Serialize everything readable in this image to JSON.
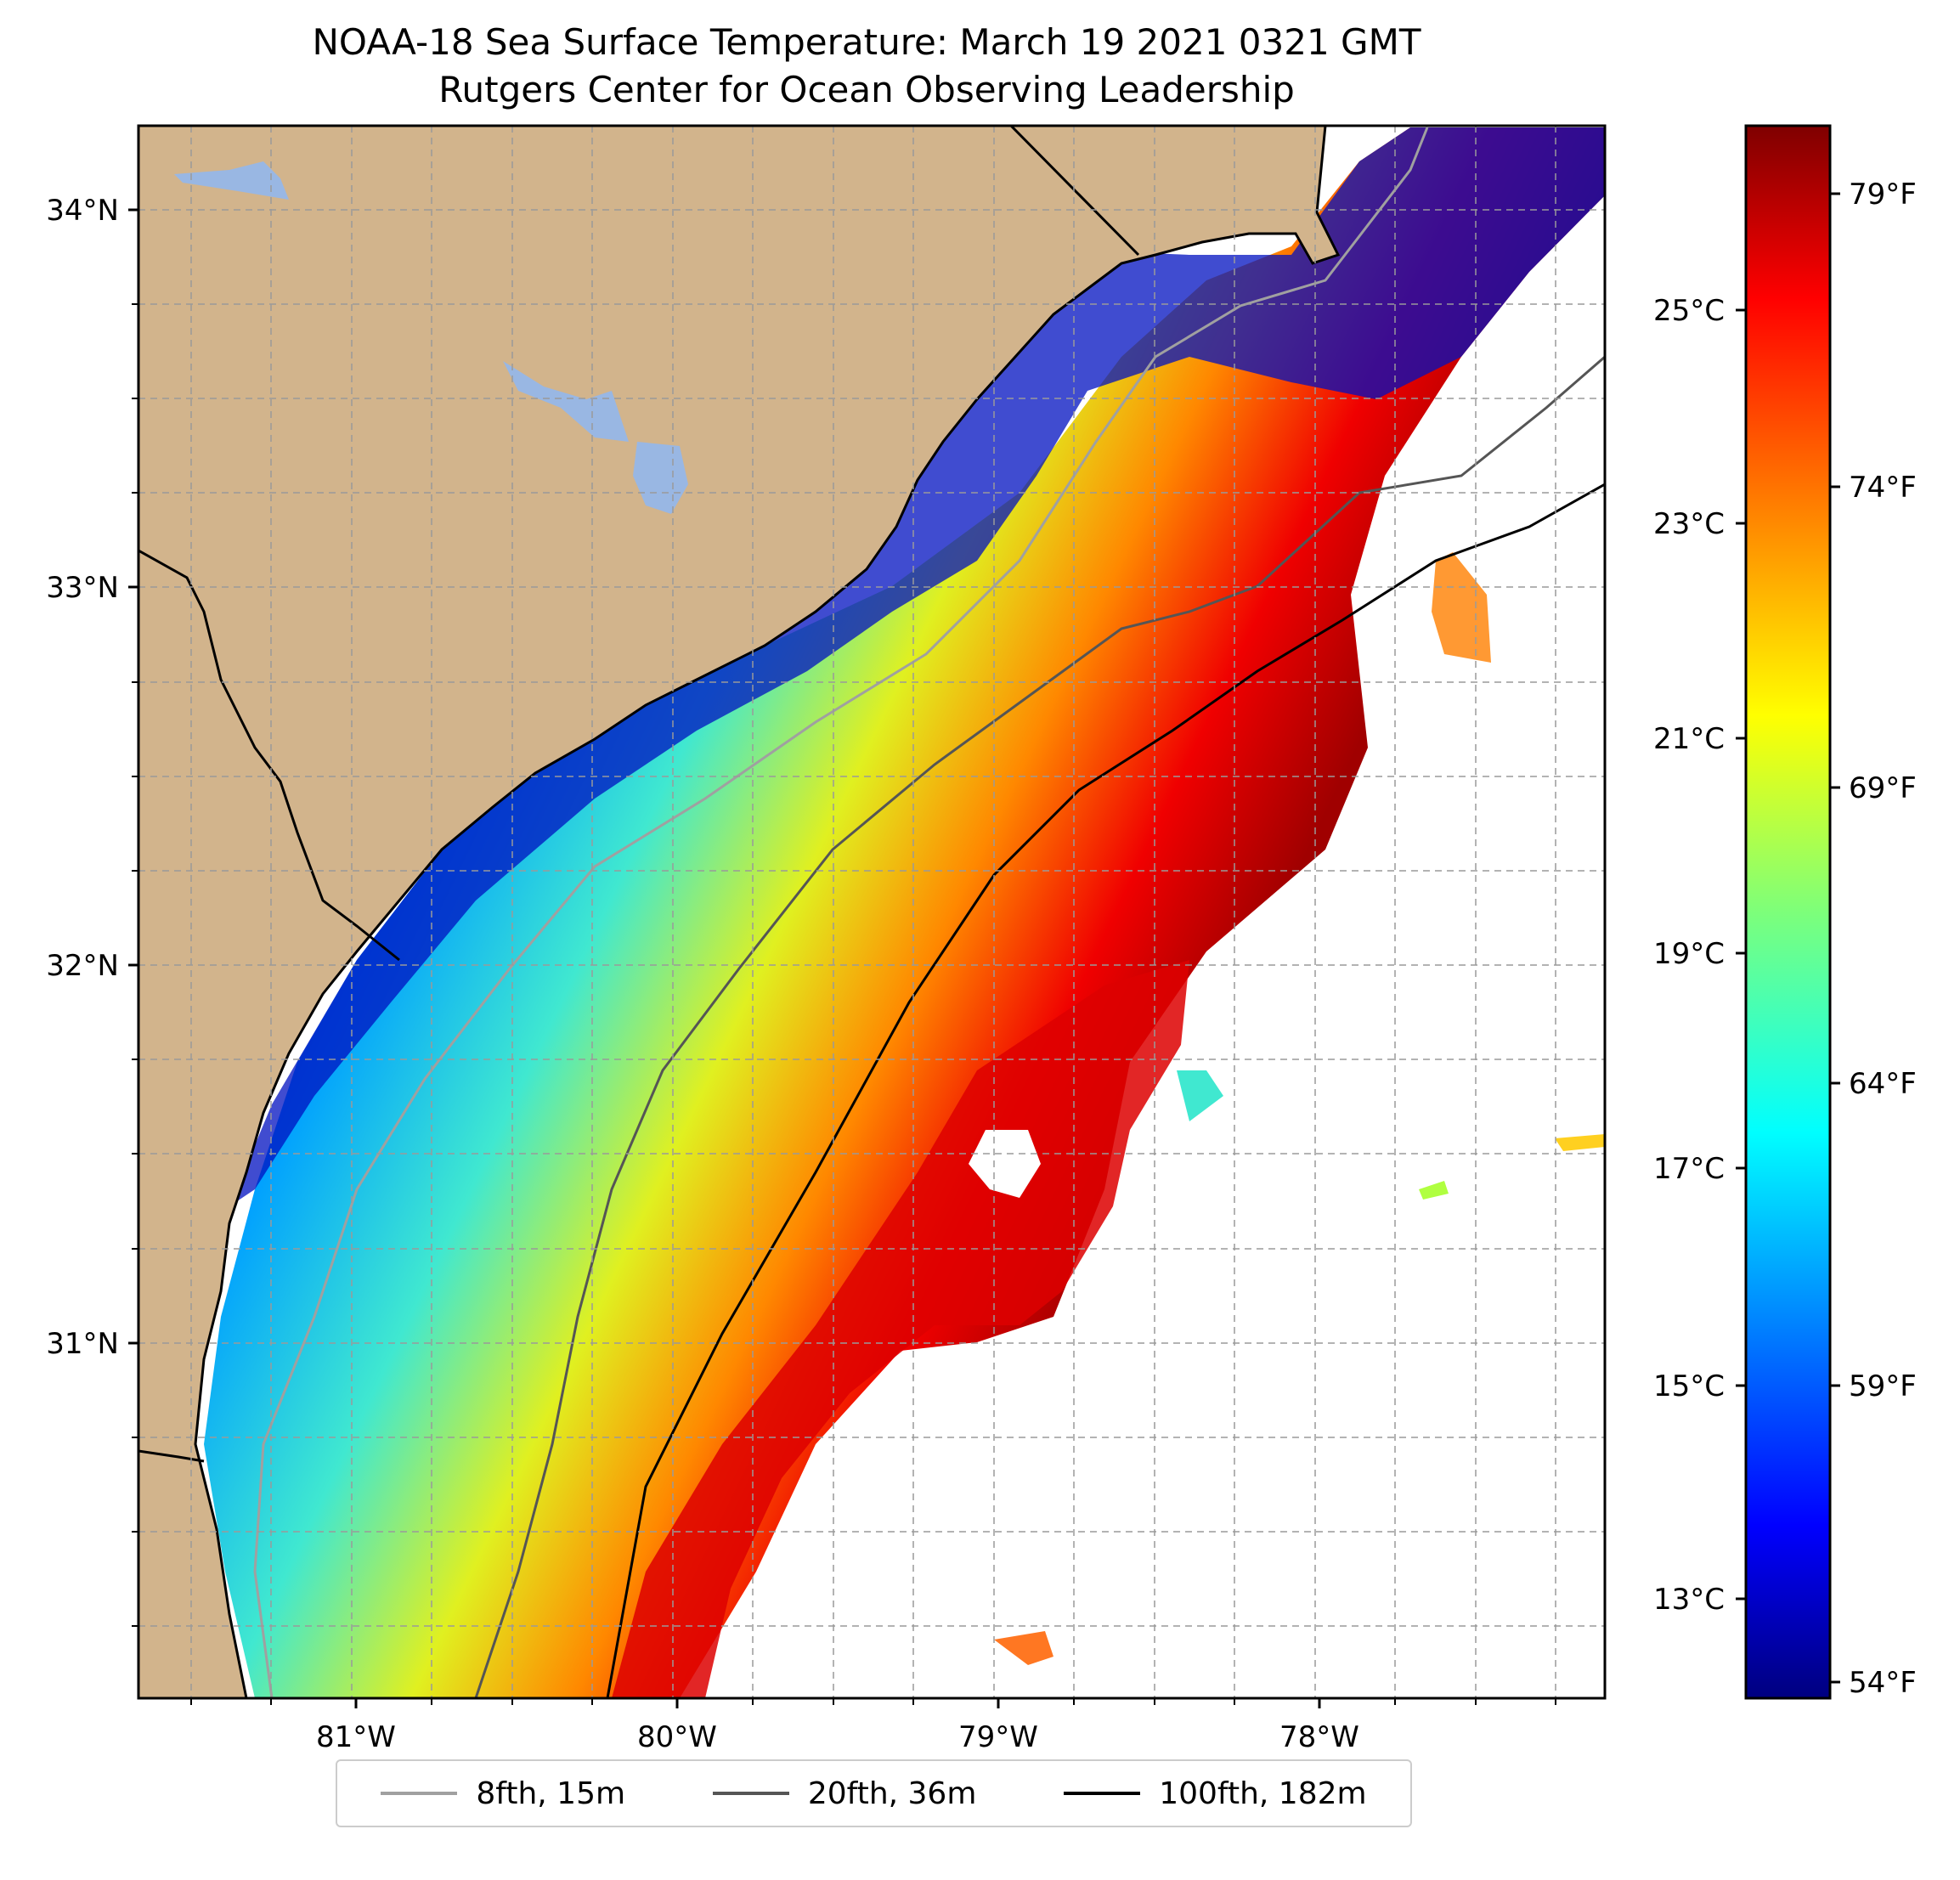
{
  "title": "NOAA-18 Sea Surface Temperature: March 19 2021 0321 GMT",
  "subtitle": "Rutgers Center for Ocean Observing Leadership",
  "map": {
    "lat_labels": [
      "34°N",
      "33°N",
      "32°N",
      "31°N"
    ],
    "lon_labels": [
      "81°W",
      "80°W",
      "79°W",
      "78°W"
    ],
    "lat_range": [
      30.1,
      34.22
    ],
    "lon_range": [
      -81.68,
      -77.14
    ],
    "land_color": "#D2B48C",
    "lake_color": "#99B7E3",
    "gridlines": true
  },
  "colorbar": {
    "colormap": "jet",
    "celsius_labels": [
      "25°C",
      "23°C",
      "21°C",
      "19°C",
      "17°C",
      "15°C",
      "13°C"
    ],
    "fahrenheit_labels": [
      "79°F",
      "74°F",
      "69°F",
      "64°F",
      "59°F",
      "54°F"
    ],
    "range_f": [
      53.4,
      80.7
    ]
  },
  "legend": {
    "entries": [
      {
        "label": "8fth, 15m",
        "color": "#a0a0a0"
      },
      {
        "label": "20fth, 36m",
        "color": "#555555"
      },
      {
        "label": "100fth, 182m",
        "color": "#000000"
      }
    ]
  }
}
